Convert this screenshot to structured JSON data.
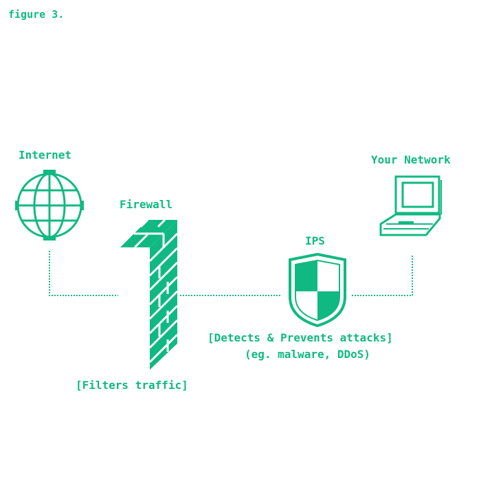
{
  "figure_label": "figure 3.",
  "colors": {
    "accent": "#10b981",
    "background": "#ffffff"
  },
  "nodes": {
    "internet": {
      "label": "Internet",
      "icon": "globe-icon"
    },
    "firewall": {
      "label": "Firewall",
      "icon": "brick-wall-icon",
      "caption": "[Filters traffic]"
    },
    "ips": {
      "label": "IPS",
      "icon": "shield-icon",
      "caption_line1": "[Detects & Prevents attacks]",
      "caption_line2": "(eg. malware, DDoS)"
    },
    "network": {
      "label": "Your Network",
      "icon": "laptop-icon"
    }
  }
}
